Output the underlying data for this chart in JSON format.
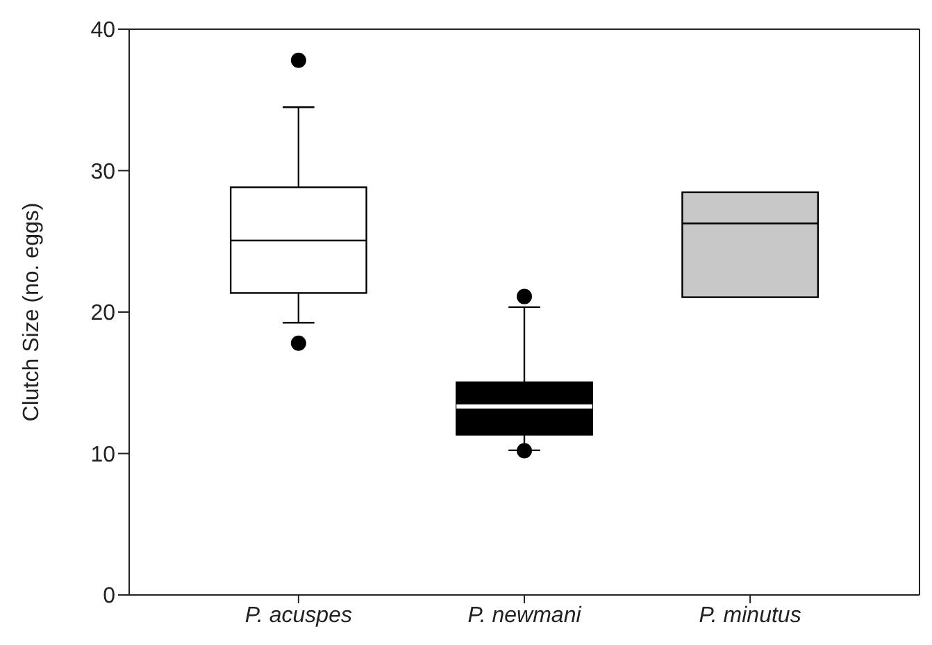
{
  "chart_data": {
    "type": "box",
    "ylabel": "Clutch Size (no. eggs)",
    "categories": [
      "P. acuspes",
      "P. newmani",
      "P. minutus"
    ],
    "colors": [
      "#ffffff",
      "#000000",
      "#c8c8c8"
    ],
    "boxes": [
      {
        "low": 19.2,
        "q1": 21.3,
        "median": 25.0,
        "q3": 28.75,
        "high": 34.4,
        "outliers": [
          37.8,
          17.8
        ]
      },
      {
        "low": 10.2,
        "q1": 11.3,
        "median": 13.3,
        "q3": 15.0,
        "high": 20.3,
        "outliers": [
          21.1,
          10.2
        ]
      },
      {
        "low": 21.0,
        "q1": 21.0,
        "median": 26.2,
        "q3": 28.4,
        "high": 28.4
      }
    ],
    "ylim": [
      0,
      40
    ],
    "yticks": [
      0,
      10,
      20,
      30,
      40
    ]
  }
}
